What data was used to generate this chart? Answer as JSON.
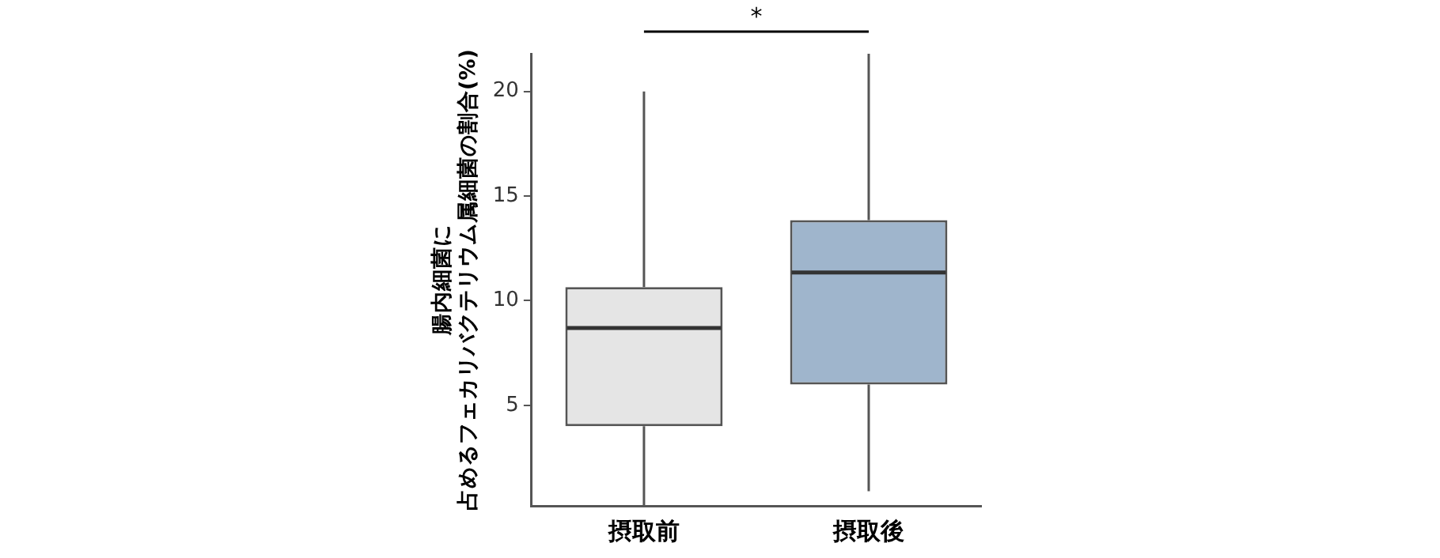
{
  "chart_data": {
    "type": "box",
    "ylabel": "腸内細菌に占めるフェカリバクテリウム属細菌の割合(%)",
    "categories": [
      "摂取前",
      "摂取後"
    ],
    "boxes": [
      {
        "low": 0.2,
        "q1": 4.0,
        "median": 8.7,
        "q3": 10.65,
        "high": 20
      },
      {
        "low": 0.9,
        "q1": 6.0,
        "median": 11.35,
        "q3": 13.85,
        "high": 21.8
      }
    ],
    "colors": [
      "#e5e5e5",
      "#9fb5cc"
    ],
    "ylim": [
      0.2,
      21.8
    ],
    "yticks": [
      5,
      10,
      15,
      20
    ],
    "grid": false,
    "legend": false,
    "annotations": [
      "*"
    ]
  }
}
